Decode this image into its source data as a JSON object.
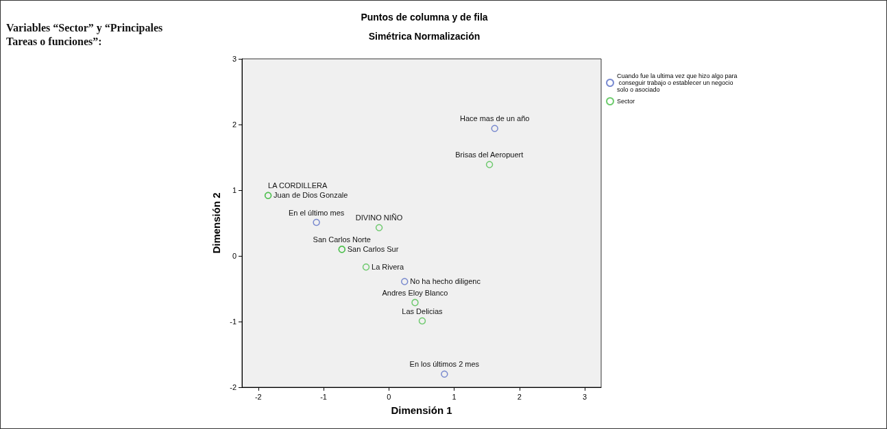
{
  "chart_data": {
    "type": "scatter",
    "title": "Puntos de columna y de fila",
    "subtitle": "Simétrica Normalización",
    "xlabel": "Dimensión 1",
    "ylabel": "Dimensión 2",
    "xlim": [
      -2.25,
      3.25
    ],
    "xticks": [
      -2,
      -1,
      0,
      1,
      2,
      3
    ],
    "ylim": [
      -2,
      3
    ],
    "yticks": [
      -2,
      -1,
      0,
      1,
      2,
      3
    ],
    "grid": false,
    "legend": "top right",
    "marker": "circle",
    "series": [
      {
        "name": "Cuando fue la ultima vez que hizo algo para  conseguir trabajo o establecer un negocio  solo o asociado",
        "color": "#5a6fc6",
        "x": [
          1.62,
          -1.11,
          0.24,
          0.85
        ],
        "values": [
          1.94,
          0.51,
          -0.39,
          -1.8
        ]
      },
      {
        "name": "Sector",
        "color": "#4cbf4c",
        "x": [
          1.54,
          -1.85,
          -1.85,
          -0.15,
          -0.72,
          -0.72,
          -0.35,
          0.4,
          0.51
        ],
        "values": [
          1.39,
          0.92,
          0.92,
          0.43,
          0.1,
          0.1,
          -0.17,
          -0.71,
          -0.99
        ]
      }
    ],
    "annotations": [
      "Variables “Sector” y “Principales Tareas o funciones”:",
      {
        "text": "Hace mas de un año",
        "x": 1.62,
        "y": 1.94
      },
      {
        "text": "Brisas del Aeropuert",
        "x": 1.54,
        "y": 1.39
      },
      {
        "text": "Juan de Dios Gonzale",
        "x": -1.85,
        "y": 0.92
      },
      {
        "text": "LA CORDILLERA",
        "x": -1.85,
        "y": 0.92
      },
      {
        "text": "En el último mes",
        "x": -1.11,
        "y": 0.51
      },
      {
        "text": "DIVINO NIÑO",
        "x": -0.15,
        "y": 0.43
      },
      {
        "text": "San Carlos Norte",
        "x": -0.72,
        "y": 0.1
      },
      {
        "text": "San Carlos Sur",
        "x": -0.72,
        "y": 0.1
      },
      {
        "text": "La Rivera",
        "x": -0.35,
        "y": -0.17
      },
      {
        "text": "No ha hecho diligenc",
        "x": 0.24,
        "y": -0.39
      },
      {
        "text": "Andres Eloy Blanco",
        "x": 0.4,
        "y": -0.71
      },
      {
        "text": "Las Delicias",
        "x": 0.51,
        "y": -0.99
      },
      {
        "text": "En los últimos 2 mes",
        "x": 0.85,
        "y": -1.8
      }
    ]
  }
}
